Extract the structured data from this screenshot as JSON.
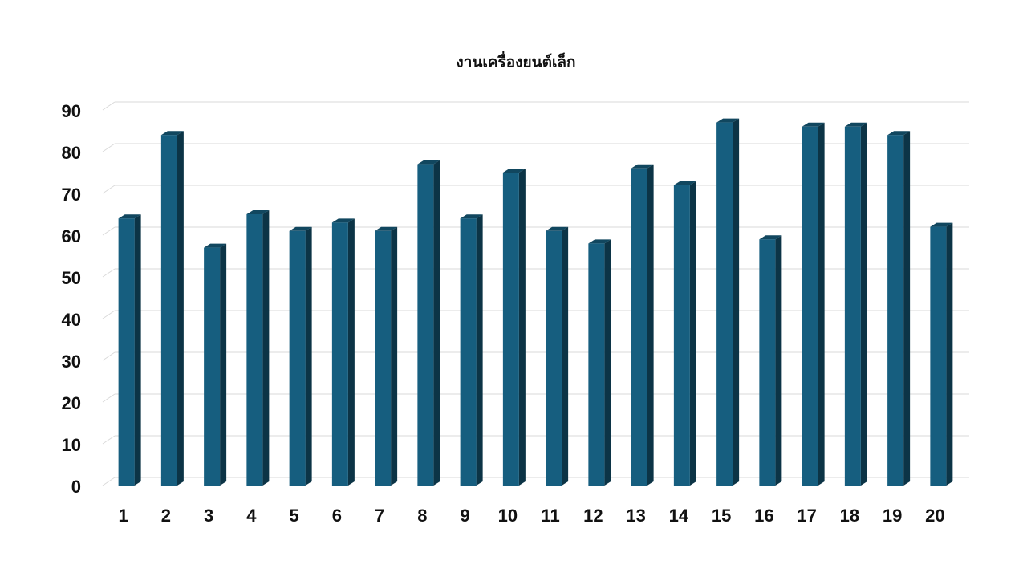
{
  "chart_data": {
    "type": "bar",
    "title": "งานเครื่องยนต์เล็ก",
    "categories": [
      "1",
      "2",
      "3",
      "4",
      "5",
      "6",
      "7",
      "8",
      "9",
      "10",
      "11",
      "12",
      "13",
      "14",
      "15",
      "16",
      "17",
      "18",
      "19",
      "20"
    ],
    "values": [
      64,
      84,
      57,
      65,
      61,
      63,
      61,
      77,
      64,
      75,
      61,
      58,
      76,
      72,
      87,
      59,
      86,
      86,
      84,
      62
    ],
    "color": "#165e7f",
    "ylim": [
      0,
      90
    ],
    "yticks": [
      0,
      10,
      20,
      30,
      40,
      50,
      60,
      70,
      80,
      90
    ],
    "grid": true
  }
}
